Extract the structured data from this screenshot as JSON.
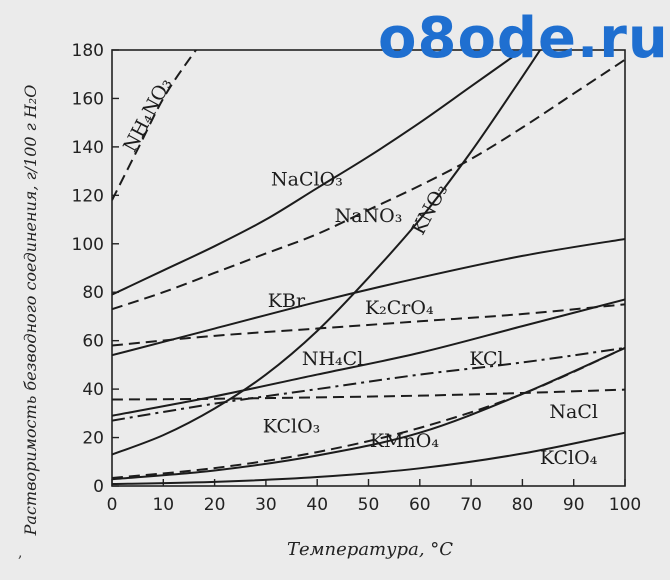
{
  "watermark": "o8ode.ru",
  "stray_mark": ",",
  "chart_data": {
    "type": "line",
    "title": "",
    "xlabel": "Температура, °C",
    "ylabel": "Растворимость безводного соединения, г/100 г H₂O",
    "xlim": [
      0,
      100
    ],
    "ylim": [
      0,
      180
    ],
    "x_ticks": [
      0,
      10,
      20,
      30,
      40,
      50,
      60,
      70,
      80,
      90,
      100
    ],
    "y_ticks": [
      0,
      20,
      40,
      60,
      80,
      100,
      120,
      140,
      160,
      180
    ],
    "grid": false,
    "series": [
      {
        "name": "NH₄NO₃",
        "style": "dashed",
        "x": [
          0,
          5,
          10,
          15,
          20
        ],
        "y": [
          118,
          139,
          160,
          176,
          190
        ]
      },
      {
        "name": "NaClO₃",
        "style": "solid",
        "x": [
          0,
          10,
          20,
          30,
          40,
          50,
          60,
          70,
          80
        ],
        "y": [
          79,
          89,
          99,
          110,
          123,
          136,
          150,
          165,
          180
        ]
      },
      {
        "name": "NaNO₃",
        "style": "dashed",
        "x": [
          0,
          10,
          20,
          30,
          40,
          50,
          60,
          70,
          80,
          90,
          100
        ],
        "y": [
          73,
          80,
          88,
          96,
          104,
          114,
          124,
          135,
          148,
          162,
          176
        ]
      },
      {
        "name": "KNO₃",
        "style": "solid",
        "x": [
          0,
          10,
          20,
          30,
          40,
          50,
          60,
          70,
          80,
          85
        ],
        "y": [
          13,
          21,
          32,
          46,
          64,
          86,
          110,
          138,
          169,
          185
        ]
      },
      {
        "name": "KBr",
        "style": "solid",
        "x": [
          0,
          20,
          40,
          60,
          80,
          100
        ],
        "y": [
          54,
          65,
          76,
          86,
          95,
          102
        ]
      },
      {
        "name": "K₂CrO₄",
        "style": "dashed",
        "x": [
          0,
          20,
          40,
          60,
          80,
          100
        ],
        "y": [
          58,
          62,
          65,
          68,
          71,
          75
        ]
      },
      {
        "name": "NH₄Cl",
        "style": "solid",
        "x": [
          0,
          20,
          40,
          60,
          80,
          100
        ],
        "y": [
          29,
          37,
          46,
          55,
          66,
          77
        ]
      },
      {
        "name": "KCl",
        "style": "dashdot",
        "x": [
          0,
          20,
          40,
          60,
          80,
          100
        ],
        "y": [
          27,
          34,
          40,
          46,
          51,
          57
        ]
      },
      {
        "name": "NaCl",
        "style": "dashed",
        "x": [
          0,
          20,
          40,
          60,
          80,
          100
        ],
        "y": [
          35.7,
          36,
          36.6,
          37.3,
          38.4,
          39.8
        ]
      },
      {
        "name": "KClO₃",
        "style": "dashed",
        "x": [
          0,
          20,
          40,
          60,
          80,
          100
        ],
        "y": [
          3.3,
          7.4,
          14,
          24,
          38,
          57
        ]
      },
      {
        "name": "KMnO₄",
        "style": "solid",
        "x": [
          0,
          20,
          40,
          60,
          80,
          100
        ],
        "y": [
          2.8,
          6.4,
          12.6,
          22,
          38,
          57
        ]
      },
      {
        "name": "KClO₄",
        "style": "solid",
        "x": [
          0,
          20,
          40,
          60,
          80,
          100
        ],
        "y": [
          0.8,
          1.7,
          3.7,
          7.3,
          13.4,
          22
        ]
      }
    ]
  }
}
